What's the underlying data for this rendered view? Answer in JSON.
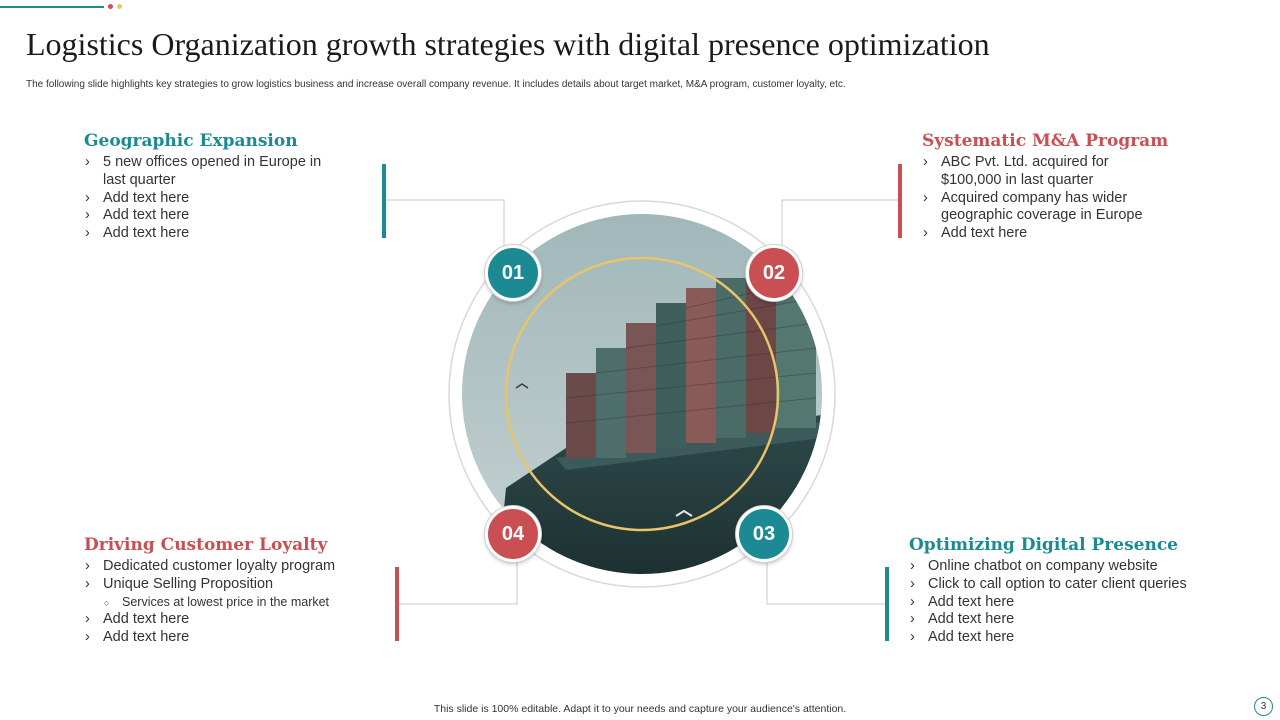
{
  "header": {
    "title": "Logistics Organization growth strategies with digital presence optimization",
    "subtitle": "The following slide highlights key strategies to grow logistics business and increase overall company revenue. It includes details about target market, M&A program, customer loyalty, etc."
  },
  "colors": {
    "teal": "#1b8a93",
    "red": "#c94f53",
    "gold": "#e9c46a"
  },
  "sections": {
    "s1": {
      "number": "01",
      "title": "Geographic Expansion",
      "bullets": [
        "5 new offices opened in Europe in last quarter",
        "Add text here",
        "Add text here",
        "Add text here"
      ]
    },
    "s2": {
      "number": "02",
      "title": "Systematic M&A Program",
      "bullets": [
        "ABC Pvt. Ltd. acquired for $100,000 in last quarter",
        "Acquired company has wider geographic coverage in Europe",
        "Add text here"
      ]
    },
    "s3": {
      "number": "03",
      "title": "Optimizing Digital Presence",
      "bullets": [
        "Online chatbot on company website",
        "Click to call option to cater client queries",
        "Add text here",
        "Add text here",
        "Add text here"
      ]
    },
    "s4": {
      "number": "04",
      "title": "Driving Customer Loyalty",
      "bullets": [
        "Dedicated customer loyalty program",
        "Unique Selling Proposition",
        "Services  at lowest price in the market",
        "Add text here",
        "Add text here"
      ]
    }
  },
  "center_image": {
    "icon": "cargo-ship-photo"
  },
  "footer": {
    "note": "This slide is 100% editable. Adapt it to your needs and capture your audience's attention.",
    "page": "3"
  }
}
